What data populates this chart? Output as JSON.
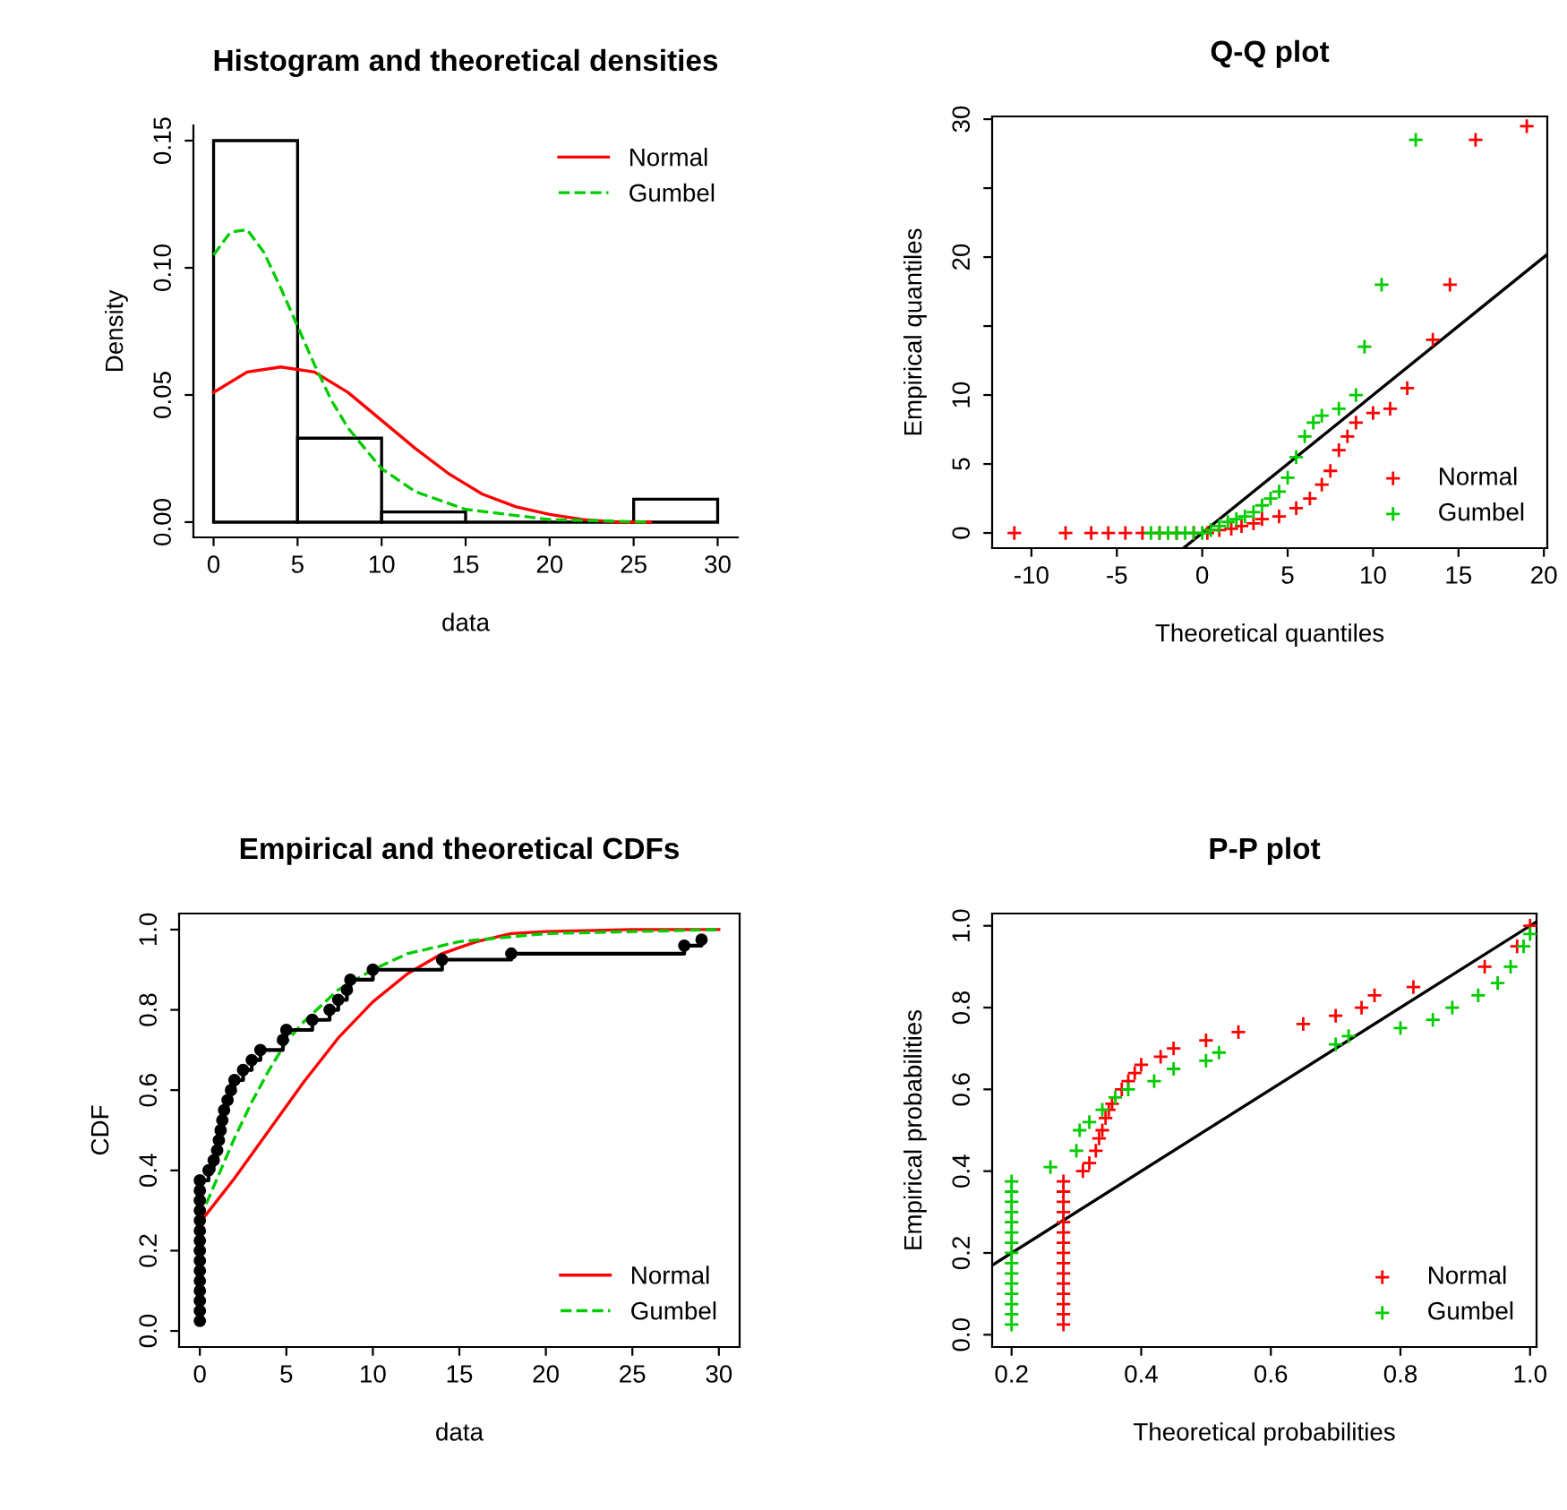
{
  "chart_data": [
    {
      "type": "histogram",
      "title": "Histogram and theoretical densities",
      "xlabel": "data",
      "ylabel": "Density",
      "bins": [
        0,
        5,
        10,
        15,
        20,
        25,
        30
      ],
      "values": [
        0.15,
        0.033,
        0.004,
        0.0,
        0.0,
        0.009
      ],
      "series": [
        {
          "name": "Normal",
          "type": "line",
          "color": "#ff0000",
          "line_style": "solid",
          "x": [
            0,
            2,
            4,
            6,
            8,
            10,
            12,
            14,
            16,
            18,
            20,
            22,
            24,
            26
          ],
          "values": [
            0.051,
            0.059,
            0.061,
            0.059,
            0.051,
            0.04,
            0.029,
            0.019,
            0.011,
            0.006,
            0.003,
            0.001,
            0.0,
            0.0
          ]
        },
        {
          "name": "Gumbel",
          "type": "line",
          "color": "#00cc00",
          "line_style": "dashed",
          "x": [
            0,
            1,
            2,
            3,
            4,
            5,
            6,
            7,
            8,
            10,
            12,
            15,
            20,
            26
          ],
          "values": [
            0.105,
            0.114,
            0.115,
            0.106,
            0.092,
            0.077,
            0.062,
            0.048,
            0.037,
            0.021,
            0.012,
            0.005,
            0.001,
            0.0
          ]
        }
      ],
      "xlim": [
        -1.2,
        31.2
      ],
      "xticks": [
        0,
        5,
        10,
        15,
        20,
        25,
        30
      ],
      "ylim": [
        -0.006,
        0.156
      ],
      "yticks": [
        {
          "value": 0,
          "label": "0.00"
        },
        {
          "value": 0.05,
          "label": "0.05"
        },
        {
          "value": 0.1,
          "label": "0.10"
        },
        {
          "value": 0.15,
          "label": "0.15"
        }
      ],
      "legend": "top right"
    },
    {
      "type": "scatter",
      "title": "Q-Q plot",
      "xlabel": "Theoretical quantiles",
      "ylabel": "Empirical quantiles",
      "marker": "cross",
      "series": [
        {
          "name": "Normal",
          "color": "#ff0000",
          "x": [
            -11,
            -8,
            -6.5,
            -5.5,
            -4.5,
            -3.5,
            -2.5,
            -1.5,
            -0.5,
            0.3,
            1,
            1.7,
            2.3,
            3,
            3.5,
            4.5,
            5.5,
            6.3,
            7,
            7.5,
            8,
            8.5,
            9,
            10,
            11,
            12,
            13.5,
            14.5,
            16,
            19
          ],
          "values": [
            0,
            0,
            0,
            0,
            0,
            0,
            0,
            0,
            0,
            0,
            0.2,
            0.3,
            0.5,
            0.7,
            1,
            1.2,
            1.8,
            2.5,
            3.5,
            4.5,
            6,
            7,
            8,
            8.7,
            9,
            10.5,
            14,
            18,
            28.5,
            29.5
          ]
        },
        {
          "name": "Gumbel",
          "color": "#00cc00",
          "x": [
            -3,
            -2.5,
            -2,
            -1.5,
            -1,
            -0.5,
            0,
            0.5,
            1,
            1.5,
            2,
            2.5,
            3,
            3.5,
            4,
            4.5,
            5,
            5.5,
            6,
            6.5,
            7,
            8,
            9,
            9.5,
            10.5,
            12.5
          ],
          "values": [
            0,
            0,
            0,
            0,
            0,
            0,
            0,
            0.2,
            0.5,
            0.8,
            1,
            1.2,
            1.5,
            2,
            2.5,
            3,
            4,
            5.5,
            7,
            8,
            8.5,
            9,
            10,
            13.5,
            18,
            28.5
          ]
        },
        {
          "type": "line",
          "color": "#000000",
          "marker": "none",
          "x": [
            -1.1,
            20.2
          ],
          "values": [
            -1.1,
            20.2
          ]
        }
      ],
      "xlim": [
        -12.3,
        20.2
      ],
      "xticks": [
        -10,
        -5,
        0,
        5,
        10,
        15,
        20
      ],
      "ylim": [
        -1.1,
        30.2
      ],
      "yticks": [
        0,
        5,
        10,
        {
          "value": 15,
          "label": null
        },
        20,
        {
          "value": 25,
          "label": null
        },
        30
      ],
      "legend": "bottom right"
    },
    {
      "type": "line",
      "title": "Empirical and theoretical CDFs",
      "xlabel": "data",
      "ylabel": "CDF",
      "series": [
        {
          "type": "step",
          "color": "#000000",
          "marker": "circle",
          "x": [
            0,
            0,
            0,
            0,
            0,
            0,
            0,
            0,
            0,
            0,
            0,
            0,
            0,
            0,
            0,
            0.5,
            0.8,
            1.0,
            1.1,
            1.2,
            1.3,
            1.4,
            1.6,
            1.8,
            2.0,
            2.5,
            3.0,
            3.5,
            4.8,
            5.0,
            6.5,
            7.5,
            8.0,
            8.5,
            8.7,
            10,
            14,
            18,
            28,
            29
          ],
          "values": [
            0.025,
            0.05,
            0.075,
            0.1,
            0.125,
            0.15,
            0.175,
            0.2,
            0.225,
            0.25,
            0.275,
            0.3,
            0.325,
            0.35,
            0.375,
            0.4,
            0.425,
            0.45,
            0.475,
            0.5,
            0.525,
            0.55,
            0.575,
            0.6,
            0.625,
            0.65,
            0.675,
            0.7,
            0.725,
            0.75,
            0.775,
            0.8,
            0.825,
            0.85,
            0.875,
            0.9,
            0.925,
            0.94,
            0.96,
            0.975
          ]
        },
        {
          "name": "Normal",
          "color": "#ff0000",
          "line_style": "solid",
          "x": [
            0,
            2,
            4,
            6,
            8,
            10,
            12,
            14,
            16,
            18,
            20,
            25,
            30
          ],
          "values": [
            0.27,
            0.38,
            0.5,
            0.62,
            0.73,
            0.82,
            0.89,
            0.94,
            0.97,
            0.99,
            0.995,
            1.0,
            1.0
          ]
        },
        {
          "name": "Gumbel",
          "color": "#00cc00",
          "line_style": "dashed",
          "x": [
            0,
            1,
            2,
            3,
            4,
            5,
            6,
            8,
            10,
            12,
            15,
            20,
            30
          ],
          "values": [
            0.28,
            0.38,
            0.48,
            0.57,
            0.65,
            0.72,
            0.77,
            0.85,
            0.9,
            0.94,
            0.97,
            0.99,
            1.0
          ]
        }
      ],
      "xlim": [
        -1.2,
        31.2
      ],
      "xticks": [
        0,
        5,
        10,
        15,
        20,
        25,
        30
      ],
      "ylim": [
        -0.04,
        1.04
      ],
      "yticks": [
        {
          "value": 0,
          "label": "0.0"
        },
        {
          "value": 0.2,
          "label": "0.2"
        },
        {
          "value": 0.4,
          "label": "0.4"
        },
        {
          "value": 0.6,
          "label": "0.6"
        },
        {
          "value": 0.8,
          "label": "0.8"
        },
        {
          "value": 1.0,
          "label": "1.0"
        }
      ],
      "legend": "bottom right"
    },
    {
      "type": "scatter",
      "title": "P-P plot",
      "xlabel": "Theoretical probabilities",
      "ylabel": "Empirical probabilities",
      "marker": "cross",
      "series": [
        {
          "name": "Normal",
          "color": "#ff0000",
          "x": [
            0.28,
            0.28,
            0.28,
            0.28,
            0.28,
            0.28,
            0.28,
            0.28,
            0.28,
            0.28,
            0.28,
            0.28,
            0.28,
            0.28,
            0.28,
            0.31,
            0.32,
            0.33,
            0.335,
            0.34,
            0.345,
            0.35,
            0.355,
            0.37,
            0.38,
            0.39,
            0.4,
            0.43,
            0.45,
            0.5,
            0.55,
            0.65,
            0.7,
            0.74,
            0.76,
            0.82,
            0.93,
            0.98,
            1.0
          ],
          "values": [
            0.025,
            0.05,
            0.075,
            0.1,
            0.125,
            0.15,
            0.175,
            0.2,
            0.225,
            0.25,
            0.275,
            0.3,
            0.325,
            0.35,
            0.375,
            0.4,
            0.42,
            0.45,
            0.48,
            0.5,
            0.53,
            0.55,
            0.565,
            0.6,
            0.62,
            0.64,
            0.66,
            0.68,
            0.7,
            0.72,
            0.74,
            0.76,
            0.78,
            0.8,
            0.83,
            0.85,
            0.9,
            0.95,
            1.0
          ]
        },
        {
          "name": "Gumbel",
          "color": "#00cc00",
          "x": [
            0.2,
            0.2,
            0.2,
            0.2,
            0.2,
            0.2,
            0.2,
            0.2,
            0.2,
            0.2,
            0.2,
            0.2,
            0.2,
            0.2,
            0.2,
            0.26,
            0.3,
            0.305,
            0.32,
            0.34,
            0.36,
            0.38,
            0.42,
            0.45,
            0.5,
            0.52,
            0.7,
            0.72,
            0.8,
            0.85,
            0.88,
            0.92,
            0.95,
            0.97,
            0.99,
            1.0
          ],
          "values": [
            0.025,
            0.05,
            0.075,
            0.1,
            0.125,
            0.15,
            0.175,
            0.2,
            0.225,
            0.25,
            0.275,
            0.3,
            0.325,
            0.35,
            0.375,
            0.41,
            0.45,
            0.5,
            0.52,
            0.55,
            0.58,
            0.6,
            0.62,
            0.65,
            0.67,
            0.69,
            0.71,
            0.73,
            0.75,
            0.77,
            0.8,
            0.83,
            0.86,
            0.9,
            0.95,
            0.98
          ]
        },
        {
          "type": "line",
          "color": "#000000",
          "marker": "none",
          "x": [
            0.17,
            1.01
          ],
          "values": [
            0.17,
            1.01
          ]
        }
      ],
      "xlim": [
        0.17,
        1.01
      ],
      "xticks": [
        {
          "value": 0.2,
          "label": "0.2"
        },
        {
          "value": 0.4,
          "label": "0.4"
        },
        {
          "value": 0.6,
          "label": "0.6"
        },
        {
          "value": 0.8,
          "label": "0.8"
        },
        {
          "value": 1.0,
          "label": "1.0"
        }
      ],
      "ylim": [
        -0.03,
        1.03
      ],
      "yticks": [
        {
          "value": 0,
          "label": "0.0"
        },
        {
          "value": 0.2,
          "label": "0.2"
        },
        {
          "value": 0.4,
          "label": "0.4"
        },
        {
          "value": 0.6,
          "label": "0.6"
        },
        {
          "value": 0.8,
          "label": "0.8"
        },
        {
          "value": 1.0,
          "label": "1.0"
        }
      ],
      "legend": "bottom right"
    }
  ]
}
